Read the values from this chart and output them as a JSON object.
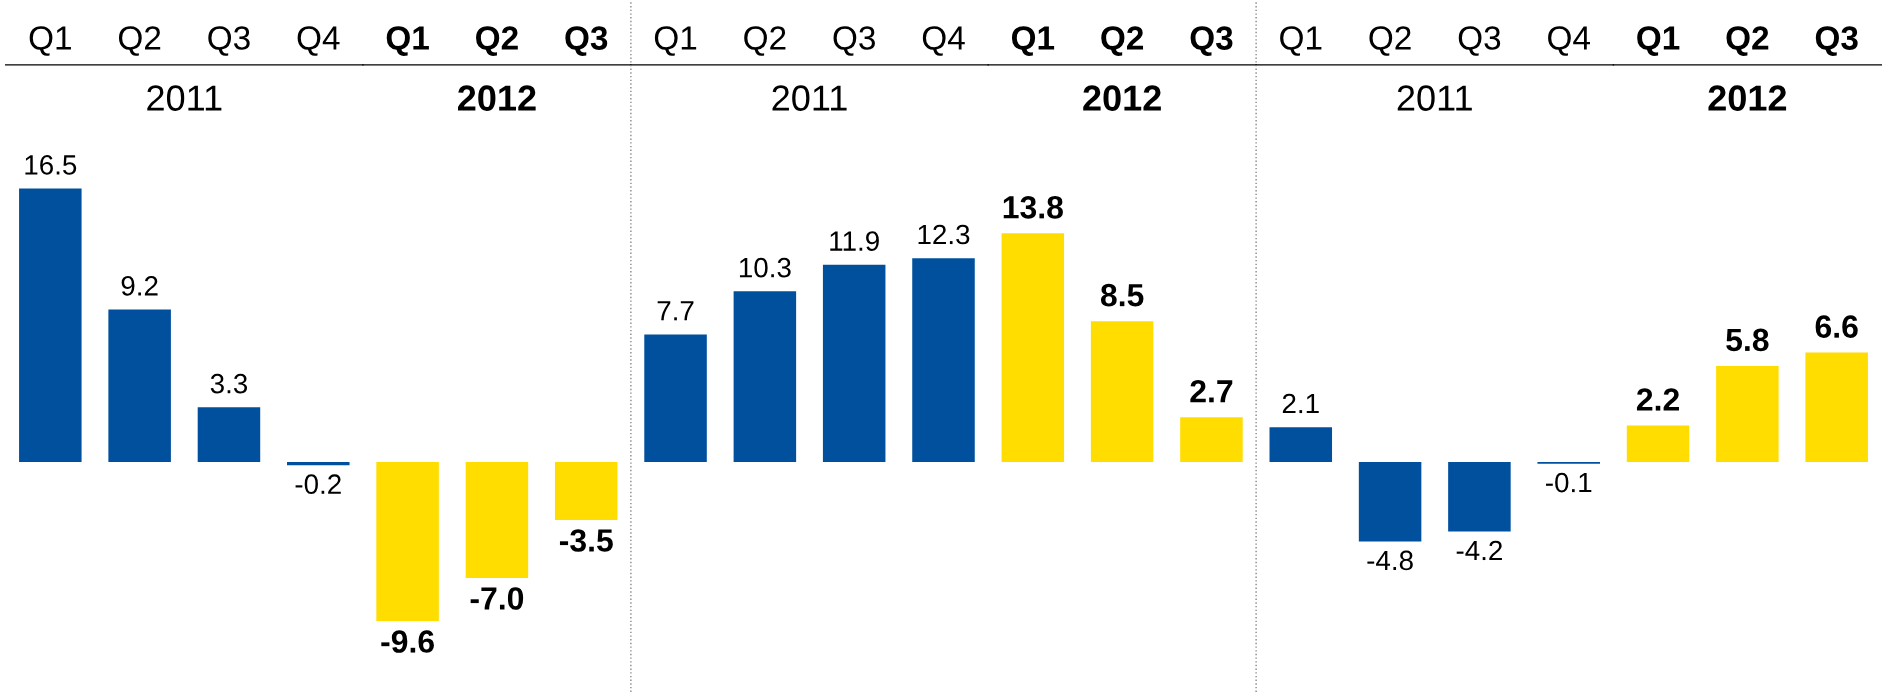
{
  "chart_data": [
    {
      "type": "bar",
      "categories": [
        "Q1",
        "Q2",
        "Q3",
        "Q4",
        "Q1",
        "Q2",
        "Q3"
      ],
      "annotations": [
        "2011",
        "2012"
      ],
      "legend": false,
      "grid": false,
      "tick_labels": "x",
      "series": [
        {
          "color": "#00509e",
          "values": [
            16.5,
            9.2,
            3.3,
            -0.2,
            null,
            null,
            null
          ],
          "value_labels": [
            "16.5",
            "9.2",
            "3.3",
            "-0.2",
            null,
            null,
            null
          ]
        },
        {
          "color": "#ffdd00",
          "values": [
            null,
            null,
            null,
            null,
            -9.6,
            -7.0,
            -3.5
          ],
          "value_labels": [
            null,
            null,
            null,
            null,
            "-9.6",
            "-7.0",
            "-3.5"
          ]
        }
      ]
    },
    {
      "type": "bar",
      "categories": [
        "Q1",
        "Q2",
        "Q3",
        "Q4",
        "Q1",
        "Q2",
        "Q3"
      ],
      "annotations": [
        "2011",
        "2012"
      ],
      "legend": false,
      "grid": false,
      "tick_labels": "x",
      "series": [
        {
          "color": "#00509e",
          "values": [
            7.7,
            10.3,
            11.9,
            12.3,
            null,
            null,
            null
          ],
          "value_labels": [
            "7.7",
            "10.3",
            "11.9",
            "12.3",
            null,
            null,
            null
          ]
        },
        {
          "color": "#ffdd00",
          "values": [
            null,
            null,
            null,
            null,
            13.8,
            8.5,
            2.7
          ],
          "value_labels": [
            null,
            null,
            null,
            null,
            "13.8",
            "8.5",
            "2.7"
          ]
        }
      ]
    },
    {
      "type": "bar",
      "categories": [
        "Q1",
        "Q2",
        "Q3",
        "Q4",
        "Q1",
        "Q2",
        "Q3"
      ],
      "annotations": [
        "2011",
        "2012"
      ],
      "legend": false,
      "grid": false,
      "tick_labels": "x",
      "series": [
        {
          "color": "#00509e",
          "values": [
            2.1,
            -4.8,
            -4.2,
            -0.1,
            null,
            null,
            null
          ],
          "value_labels": [
            "2.1",
            "-4.8",
            "-4.2",
            "-0.1",
            null,
            null,
            null
          ]
        },
        {
          "color": "#ffdd00",
          "values": [
            null,
            null,
            null,
            null,
            2.2,
            5.8,
            6.6
          ],
          "value_labels": [
            null,
            null,
            null,
            null,
            "2.2",
            "5.8",
            "6.6"
          ]
        }
      ]
    }
  ]
}
